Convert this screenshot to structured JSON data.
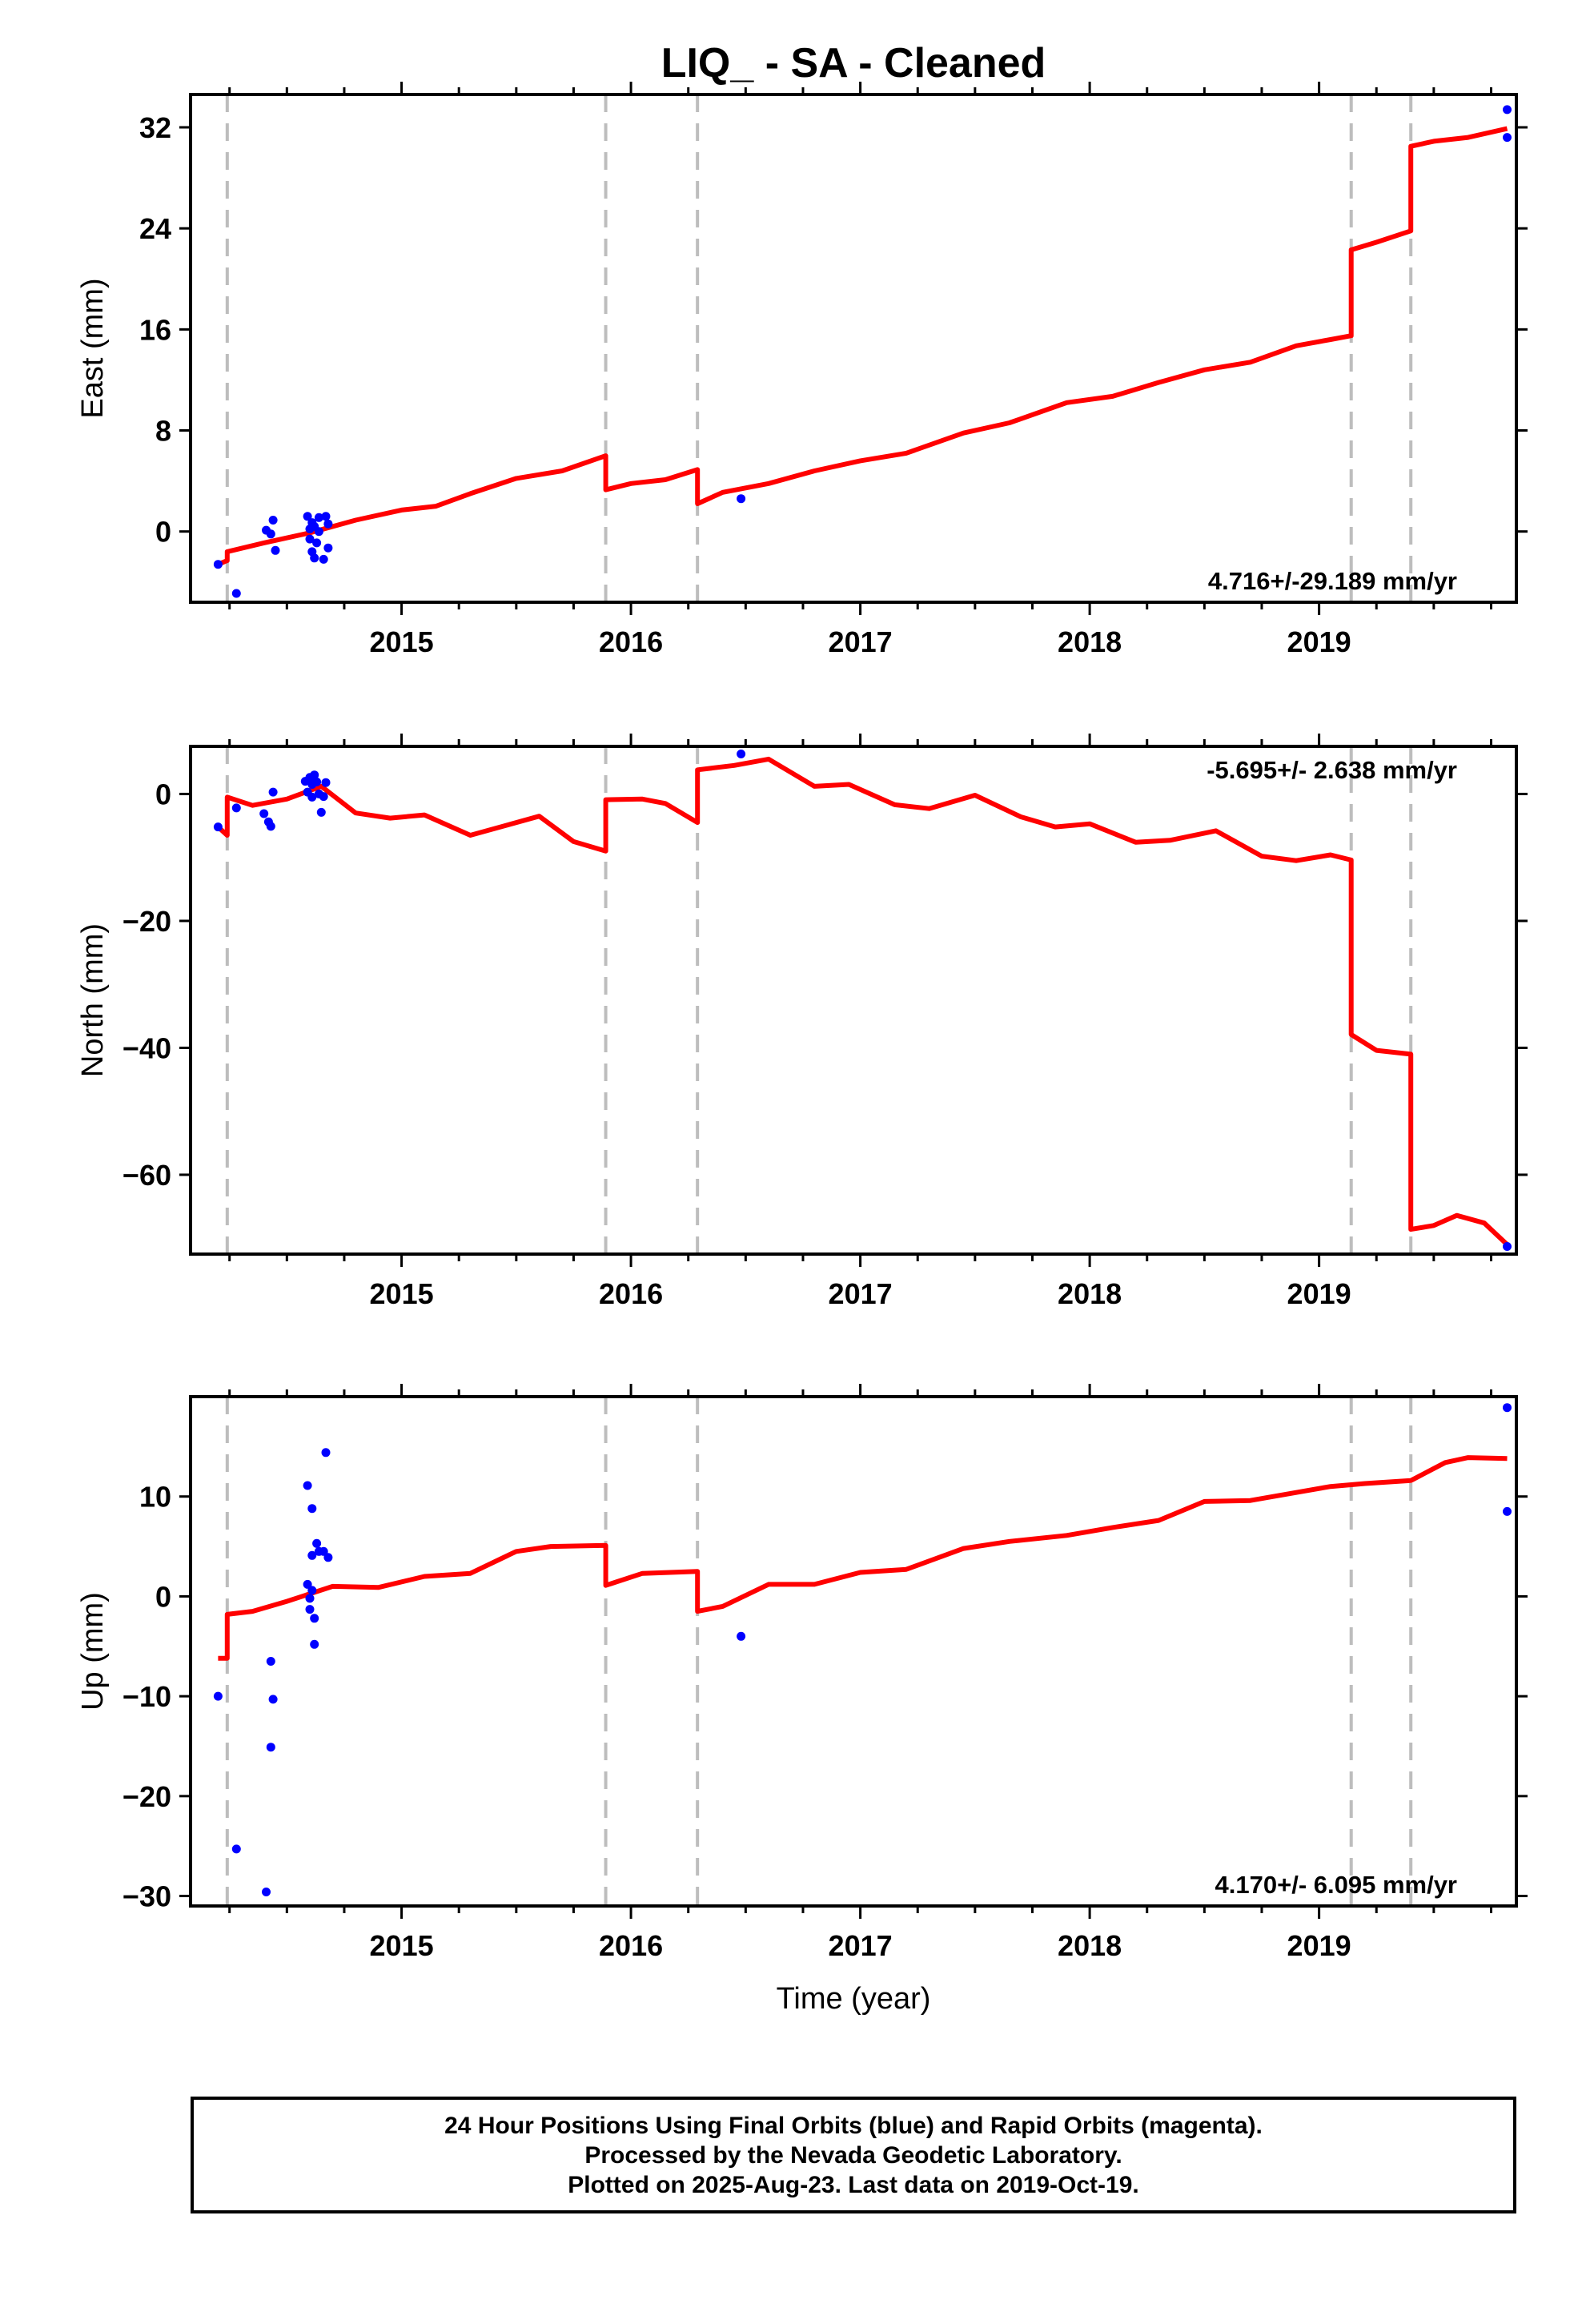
{
  "title": "LIQ_  - SA - Cleaned",
  "colors": {
    "final": "#0000ff",
    "model": "#ff0000",
    "event": "#bdbdbd",
    "frame": "#000000"
  },
  "chart_data": [
    {
      "type": "scatter",
      "component": "East",
      "ylabel": "East (mm)",
      "xlabel": "",
      "xlim": [
        2014.08,
        2019.86
      ],
      "ylim": [
        -5.6,
        34.6
      ],
      "yticks": [
        0,
        8,
        16,
        24,
        32
      ],
      "xticks": [
        2015,
        2016,
        2017,
        2018,
        2019
      ],
      "rate_label": "4.716+/-29.189 mm/yr",
      "rate_position": "bottom-right",
      "events": [
        2014.24,
        2015.89,
        2016.29,
        2019.14,
        2019.4
      ],
      "points": [
        [
          2014.2,
          -2.6
        ],
        [
          2014.28,
          -4.9
        ],
        [
          2014.41,
          0.1
        ],
        [
          2014.43,
          -0.2
        ],
        [
          2014.44,
          0.9
        ],
        [
          2014.45,
          -1.5
        ],
        [
          2014.59,
          1.2
        ],
        [
          2014.6,
          0.2
        ],
        [
          2014.6,
          -0.6
        ],
        [
          2014.61,
          0.7
        ],
        [
          2014.61,
          -1.6
        ],
        [
          2014.62,
          -2.1
        ],
        [
          2014.62,
          0.4
        ],
        [
          2014.63,
          -0.9
        ],
        [
          2014.64,
          1.1
        ],
        [
          2014.64,
          0.0
        ],
        [
          2014.66,
          -2.2
        ],
        [
          2014.67,
          1.2
        ],
        [
          2014.68,
          0.6
        ],
        [
          2014.68,
          -1.3
        ],
        [
          2016.48,
          2.6
        ],
        [
          2019.82,
          33.4
        ],
        [
          2019.82,
          31.2
        ]
      ],
      "segments": [
        [
          [
            2014.2,
            -2.6
          ],
          [
            2014.24,
            -2.3
          ]
        ],
        [
          [
            2014.24,
            -1.6
          ],
          [
            2014.4,
            -0.9
          ],
          [
            2014.6,
            -0.1
          ],
          [
            2014.8,
            0.9
          ],
          [
            2015.0,
            1.7
          ],
          [
            2015.15,
            2.0
          ],
          [
            2015.3,
            3.0
          ],
          [
            2015.5,
            4.2
          ],
          [
            2015.7,
            4.8
          ],
          [
            2015.89,
            6.0
          ]
        ],
        [
          [
            2015.89,
            3.3
          ],
          [
            2016.0,
            3.8
          ],
          [
            2016.15,
            4.1
          ],
          [
            2016.29,
            4.9
          ]
        ],
        [
          [
            2016.29,
            2.2
          ],
          [
            2016.4,
            3.1
          ],
          [
            2016.6,
            3.8
          ],
          [
            2016.8,
            4.8
          ],
          [
            2017.0,
            5.6
          ],
          [
            2017.2,
            6.2
          ],
          [
            2017.45,
            7.8
          ],
          [
            2017.65,
            8.6
          ],
          [
            2017.9,
            10.2
          ],
          [
            2018.1,
            10.7
          ],
          [
            2018.3,
            11.8
          ],
          [
            2018.5,
            12.8
          ],
          [
            2018.7,
            13.4
          ],
          [
            2018.9,
            14.7
          ],
          [
            2019.05,
            15.2
          ],
          [
            2019.14,
            15.5
          ]
        ],
        [
          [
            2019.14,
            22.3
          ],
          [
            2019.25,
            22.9
          ],
          [
            2019.4,
            23.8
          ]
        ],
        [
          [
            2019.4,
            30.5
          ],
          [
            2019.5,
            30.9
          ],
          [
            2019.65,
            31.2
          ],
          [
            2019.82,
            31.9
          ]
        ]
      ]
    },
    {
      "type": "scatter",
      "component": "North",
      "ylabel": "North (mm)",
      "xlabel": "",
      "xlim": [
        2014.08,
        2019.86
      ],
      "ylim": [
        -72.5,
        7.5
      ],
      "yticks": [
        0,
        -20,
        -40,
        -60
      ],
      "xticks": [
        2015,
        2016,
        2017,
        2018,
        2019
      ],
      "rate_label": "-5.695+/- 2.638 mm/yr",
      "rate_position": "top-right",
      "events": [
        2014.24,
        2015.89,
        2016.29,
        2019.14,
        2019.4
      ],
      "points": [
        [
          2014.2,
          -5.2
        ],
        [
          2014.28,
          -2.2
        ],
        [
          2014.4,
          -3.1
        ],
        [
          2014.42,
          -4.4
        ],
        [
          2014.43,
          -5.1
        ],
        [
          2014.44,
          0.3
        ],
        [
          2014.58,
          2.0
        ],
        [
          2014.59,
          0.3
        ],
        [
          2014.6,
          2.6
        ],
        [
          2014.61,
          1.5
        ],
        [
          2014.61,
          -0.5
        ],
        [
          2014.62,
          3.0
        ],
        [
          2014.63,
          1.9
        ],
        [
          2014.64,
          0.0
        ],
        [
          2014.65,
          -2.9
        ],
        [
          2014.66,
          -0.4
        ],
        [
          2014.67,
          1.8
        ],
        [
          2016.48,
          6.3
        ],
        [
          2019.82,
          -71.3
        ]
      ],
      "segments": [
        [
          [
            2014.2,
            -5.2
          ],
          [
            2014.24,
            -6.5
          ]
        ],
        [
          [
            2014.24,
            -0.5
          ],
          [
            2014.35,
            -1.8
          ],
          [
            2014.5,
            -0.8
          ],
          [
            2014.65,
            1.2
          ],
          [
            2014.8,
            -3.0
          ],
          [
            2014.95,
            -3.8
          ],
          [
            2015.1,
            -3.3
          ],
          [
            2015.3,
            -6.5
          ],
          [
            2015.45,
            -5.0
          ],
          [
            2015.6,
            -3.5
          ],
          [
            2015.75,
            -7.5
          ],
          [
            2015.89,
            -9.0
          ]
        ],
        [
          [
            2015.89,
            -0.9
          ],
          [
            2016.05,
            -0.8
          ],
          [
            2016.15,
            -1.5
          ],
          [
            2016.29,
            -4.5
          ]
        ],
        [
          [
            2016.29,
            3.8
          ],
          [
            2016.45,
            4.5
          ],
          [
            2016.6,
            5.5
          ],
          [
            2016.8,
            1.2
          ],
          [
            2016.95,
            1.5
          ],
          [
            2017.15,
            -1.7
          ],
          [
            2017.3,
            -2.3
          ],
          [
            2017.5,
            -0.2
          ],
          [
            2017.7,
            -3.6
          ],
          [
            2017.85,
            -5.2
          ],
          [
            2018.0,
            -4.7
          ],
          [
            2018.2,
            -7.6
          ],
          [
            2018.35,
            -7.3
          ],
          [
            2018.55,
            -5.8
          ],
          [
            2018.75,
            -9.8
          ],
          [
            2018.9,
            -10.5
          ],
          [
            2019.05,
            -9.6
          ],
          [
            2019.14,
            -10.4
          ]
        ],
        [
          [
            2019.14,
            -37.9
          ],
          [
            2019.25,
            -40.4
          ],
          [
            2019.4,
            -41.0
          ]
        ],
        [
          [
            2019.4,
            -68.6
          ],
          [
            2019.5,
            -68.0
          ],
          [
            2019.6,
            -66.4
          ],
          [
            2019.72,
            -67.6
          ],
          [
            2019.82,
            -71.0
          ]
        ]
      ]
    },
    {
      "type": "scatter",
      "component": "Up",
      "ylabel": "Up (mm)",
      "xlabel": "Time (year)",
      "xlim": [
        2014.08,
        2019.86
      ],
      "ylim": [
        -31,
        20
      ],
      "yticks": [
        10,
        0,
        -10,
        -20,
        -30
      ],
      "xticks": [
        2015,
        2016,
        2017,
        2018,
        2019
      ],
      "rate_label": "4.170+/- 6.095 mm/yr",
      "rate_position": "bottom-right",
      "events": [
        2014.24,
        2015.89,
        2016.29,
        2019.14,
        2019.4
      ],
      "points": [
        [
          2014.2,
          -10.0
        ],
        [
          2014.28,
          -25.3
        ],
        [
          2014.41,
          -29.6
        ],
        [
          2014.43,
          -6.5
        ],
        [
          2014.44,
          -10.3
        ],
        [
          2014.43,
          -15.1
        ],
        [
          2014.59,
          11.1
        ],
        [
          2014.59,
          1.2
        ],
        [
          2014.6,
          -0.2
        ],
        [
          2014.6,
          -1.3
        ],
        [
          2014.61,
          0.6
        ],
        [
          2014.61,
          8.8
        ],
        [
          2014.61,
          4.1
        ],
        [
          2014.62,
          -2.2
        ],
        [
          2014.62,
          -4.8
        ],
        [
          2014.63,
          5.3
        ],
        [
          2014.64,
          4.5
        ],
        [
          2014.66,
          4.5
        ],
        [
          2014.67,
          14.4
        ],
        [
          2014.68,
          3.9
        ],
        [
          2016.48,
          -4.0
        ],
        [
          2019.82,
          18.9
        ],
        [
          2019.82,
          8.5
        ]
      ],
      "segments": [
        [
          [
            2014.2,
            -6.2
          ],
          [
            2014.24,
            -6.2
          ]
        ],
        [
          [
            2014.24,
            -1.8
          ],
          [
            2014.35,
            -1.5
          ],
          [
            2014.5,
            -0.5
          ],
          [
            2014.7,
            1.0
          ],
          [
            2014.9,
            0.9
          ],
          [
            2015.1,
            2.0
          ],
          [
            2015.3,
            2.3
          ],
          [
            2015.5,
            4.5
          ],
          [
            2015.65,
            5.0
          ],
          [
            2015.89,
            5.1
          ]
        ],
        [
          [
            2015.89,
            1.1
          ],
          [
            2016.05,
            2.3
          ],
          [
            2016.29,
            2.5
          ]
        ],
        [
          [
            2016.29,
            -1.5
          ],
          [
            2016.4,
            -1.0
          ],
          [
            2016.6,
            1.2
          ],
          [
            2016.8,
            1.2
          ],
          [
            2017.0,
            2.4
          ],
          [
            2017.2,
            2.7
          ],
          [
            2017.45,
            4.8
          ],
          [
            2017.65,
            5.5
          ],
          [
            2017.9,
            6.1
          ],
          [
            2018.1,
            6.9
          ],
          [
            2018.3,
            7.6
          ],
          [
            2018.5,
            9.5
          ],
          [
            2018.7,
            9.6
          ],
          [
            2018.9,
            10.4
          ],
          [
            2019.05,
            11.0
          ],
          [
            2019.2,
            11.3
          ],
          [
            2019.4,
            11.6
          ]
        ],
        [
          [
            2019.4,
            11.6
          ],
          [
            2019.55,
            13.4
          ],
          [
            2019.65,
            13.9
          ],
          [
            2019.82,
            13.8
          ]
        ]
      ]
    }
  ],
  "footer": {
    "line1": "24 Hour Positions Using Final Orbits (blue) and Rapid Orbits (magenta).",
    "line2": "Processed by the Nevada Geodetic Laboratory.",
    "line3": "Plotted on 2025-Aug-23. Last data on 2019-Oct-19."
  }
}
